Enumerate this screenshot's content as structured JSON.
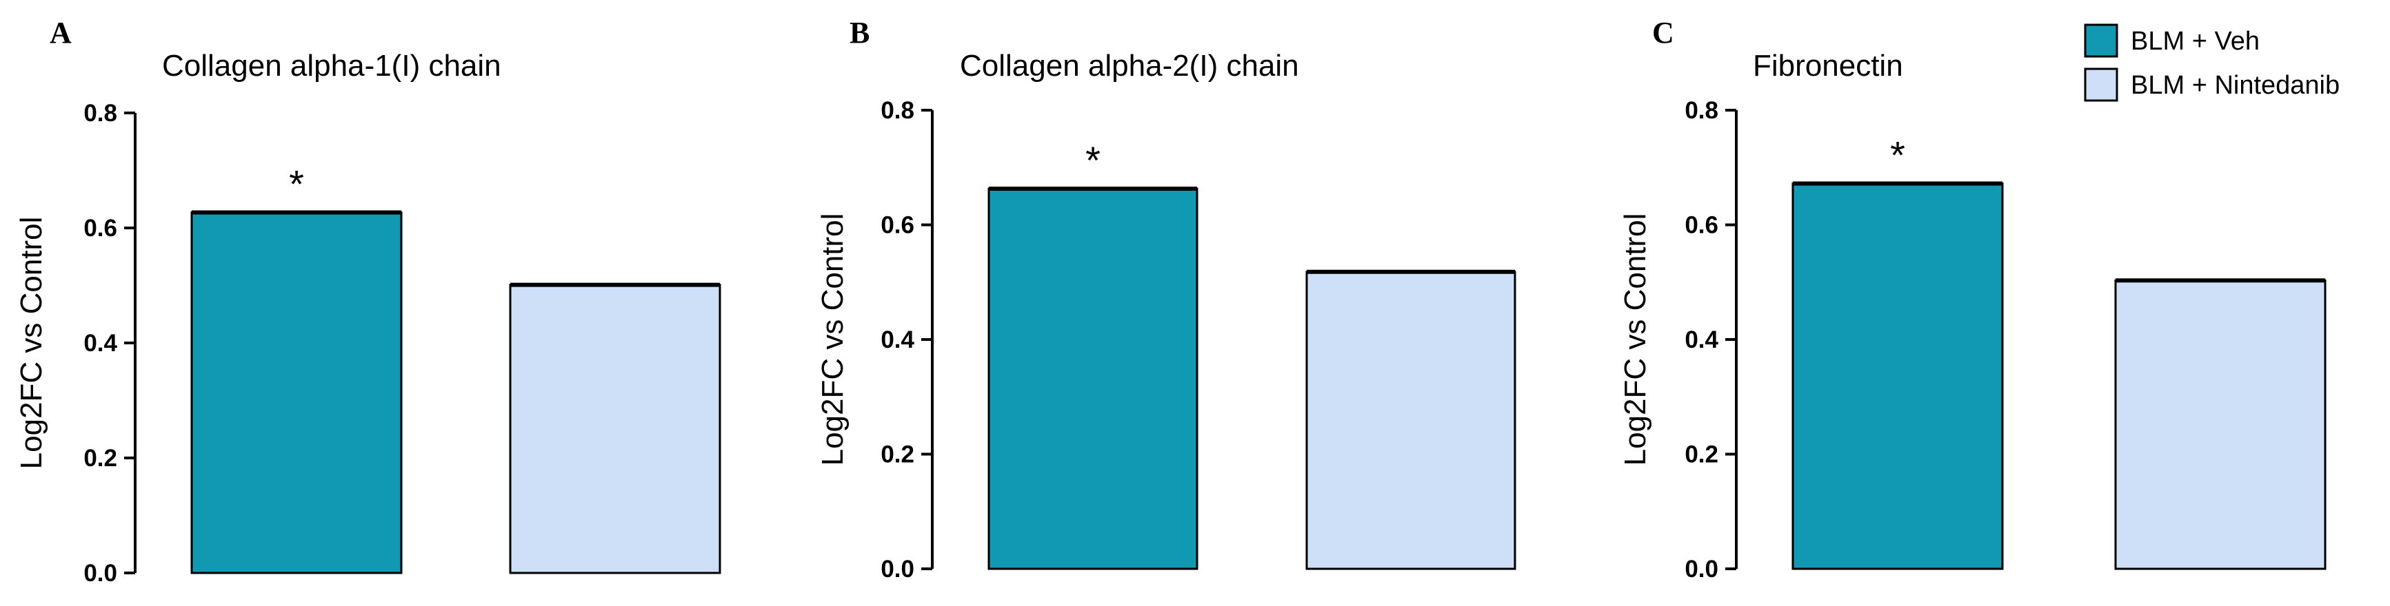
{
  "legend": {
    "entries": [
      {
        "label": "BLM + Veh",
        "color": "#1199b4"
      },
      {
        "label": "BLM + Nintedanib",
        "color": "#cde0f7"
      }
    ]
  },
  "chart_data": [
    {
      "type": "bar",
      "panel": "A",
      "title": "Collagen alpha-1(I) chain",
      "ylabel": "Log2FC vs Control",
      "xlabel": "",
      "ylim": [
        0,
        0.8
      ],
      "yticks": [
        "0.0",
        "0.2",
        "0.4",
        "0.6",
        "0.8"
      ],
      "categories": [
        "BLM + Veh",
        "BLM + Nintedanib"
      ],
      "values": [
        0.627,
        0.501
      ],
      "colors": [
        "#1199b4",
        "#cde0f7"
      ],
      "annotations": [
        "*",
        ""
      ]
    },
    {
      "type": "bar",
      "panel": "B",
      "title": "Collagen alpha-2(I) chain",
      "ylabel": "Log2FC vs Control",
      "xlabel": "",
      "ylim": [
        0,
        0.8
      ],
      "yticks": [
        "0.0",
        "0.2",
        "0.4",
        "0.6",
        "0.8"
      ],
      "categories": [
        "BLM + Veh",
        "BLM + Nintedanib"
      ],
      "values": [
        0.663,
        0.518
      ],
      "colors": [
        "#1199b4",
        "#cde0f7"
      ],
      "annotations": [
        "*",
        ""
      ]
    },
    {
      "type": "bar",
      "panel": "C",
      "title": "Fibronectin",
      "ylabel": "Log2FC vs Control",
      "xlabel": "",
      "ylim": [
        0,
        0.8
      ],
      "yticks": [
        "0.0",
        "0.2",
        "0.4",
        "0.6",
        "0.8"
      ],
      "categories": [
        "BLM + Veh",
        "BLM + Nintedanib"
      ],
      "values": [
        0.672,
        0.503
      ],
      "colors": [
        "#1199b4",
        "#cde0f7"
      ],
      "annotations": [
        "*",
        ""
      ]
    }
  ]
}
